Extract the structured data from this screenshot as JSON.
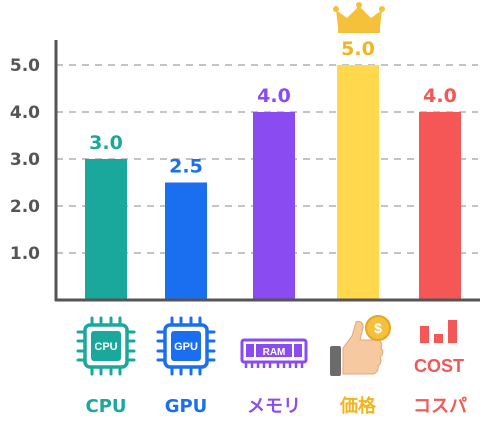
{
  "chart_data": {
    "type": "bar",
    "categories": [
      "CPU",
      "GPU",
      "メモリ",
      "価格",
      "コスパ"
    ],
    "values": [
      3.0,
      2.5,
      4.0,
      5.0,
      4.0
    ],
    "value_labels": [
      "3.0",
      "2.5",
      "4.0",
      "5.0",
      "4.0"
    ],
    "colors": [
      "#1aa89c",
      "#1a6ef0",
      "#8a4cf0",
      "#ffd84d",
      "#f55656"
    ],
    "label_colors": [
      "#1aa89c",
      "#1a6ef0",
      "#8a4cf0",
      "#f2b51f",
      "#f55656"
    ],
    "y_ticks": [
      1.0,
      2.0,
      3.0,
      4.0,
      5.0
    ],
    "y_tick_labels": [
      "1.0",
      "2.0",
      "3.0",
      "4.0",
      "5.0"
    ],
    "ylim": [
      0,
      5.5
    ],
    "grid": true,
    "icons": [
      "cpu-chip-icon",
      "gpu-chip-icon",
      "ram-module-icon",
      "thumbs-up-dollar-icon",
      "cost-bars-icon"
    ],
    "icon_texts": {
      "cpu": "CPU",
      "gpu": "GPU",
      "ram": "RAM",
      "coin": "$",
      "cost": "COST"
    },
    "highlight_icon": "crown-icon"
  }
}
